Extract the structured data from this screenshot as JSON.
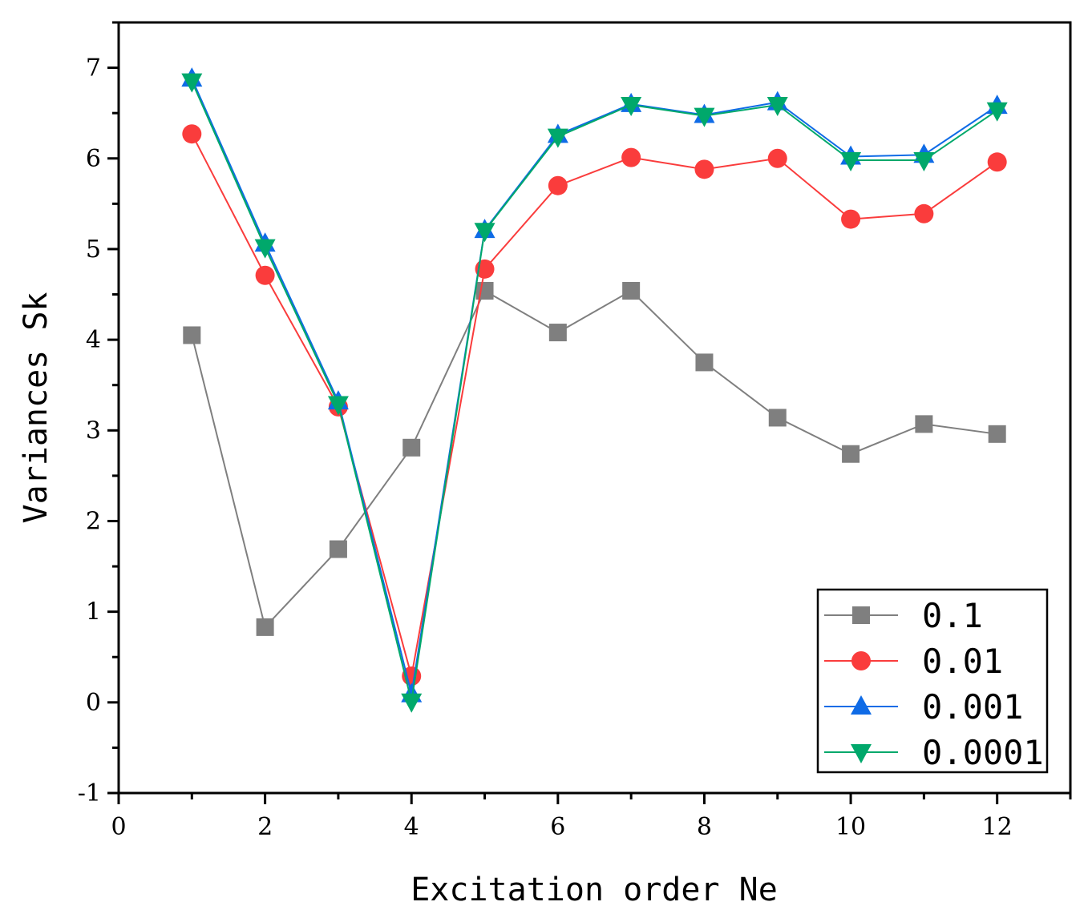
{
  "chart_data": {
    "type": "line",
    "title": "",
    "xlabel": "Excitation order Ne",
    "ylabel": "Variances Sk",
    "xlim": [
      0,
      13
    ],
    "ylim": [
      -1,
      7.5
    ],
    "xticks": [
      0,
      2,
      4,
      6,
      8,
      10,
      12
    ],
    "xtick_labels": [
      "0",
      "2",
      "4",
      "6",
      "8",
      "10",
      "12"
    ],
    "yticks": [
      -1,
      0,
      1,
      2,
      3,
      4,
      5,
      6,
      7
    ],
    "ytick_labels": [
      "-1",
      "0",
      "1",
      "2",
      "3",
      "4",
      "5",
      "6",
      "7"
    ],
    "legend_position": "bottom-right",
    "x": [
      1,
      2,
      3,
      4,
      5,
      6,
      7,
      8,
      9,
      10,
      11,
      12
    ],
    "series": [
      {
        "name": "0.1",
        "marker": "square",
        "color": "#7f7f7f",
        "values": [
          4.05,
          0.83,
          1.69,
          2.81,
          4.54,
          4.08,
          4.54,
          3.75,
          3.14,
          2.74,
          3.07,
          2.96
        ]
      },
      {
        "name": "0.01",
        "marker": "circle",
        "color": "#fa3c3c",
        "values": [
          6.27,
          4.71,
          3.26,
          0.29,
          4.78,
          5.7,
          6.01,
          5.88,
          6.0,
          5.33,
          5.39,
          5.96
        ]
      },
      {
        "name": "0.001",
        "marker": "triangle-up",
        "color": "#0f6be6",
        "values": [
          6.88,
          5.06,
          3.32,
          0.09,
          5.21,
          6.26,
          6.6,
          6.48,
          6.62,
          6.02,
          6.04,
          6.58
        ]
      },
      {
        "name": "0.0001",
        "marker": "triangle-down",
        "color": "#00a86b",
        "values": [
          6.85,
          5.02,
          3.29,
          0.01,
          5.2,
          6.24,
          6.59,
          6.47,
          6.59,
          5.98,
          5.98,
          6.53
        ]
      }
    ]
  }
}
